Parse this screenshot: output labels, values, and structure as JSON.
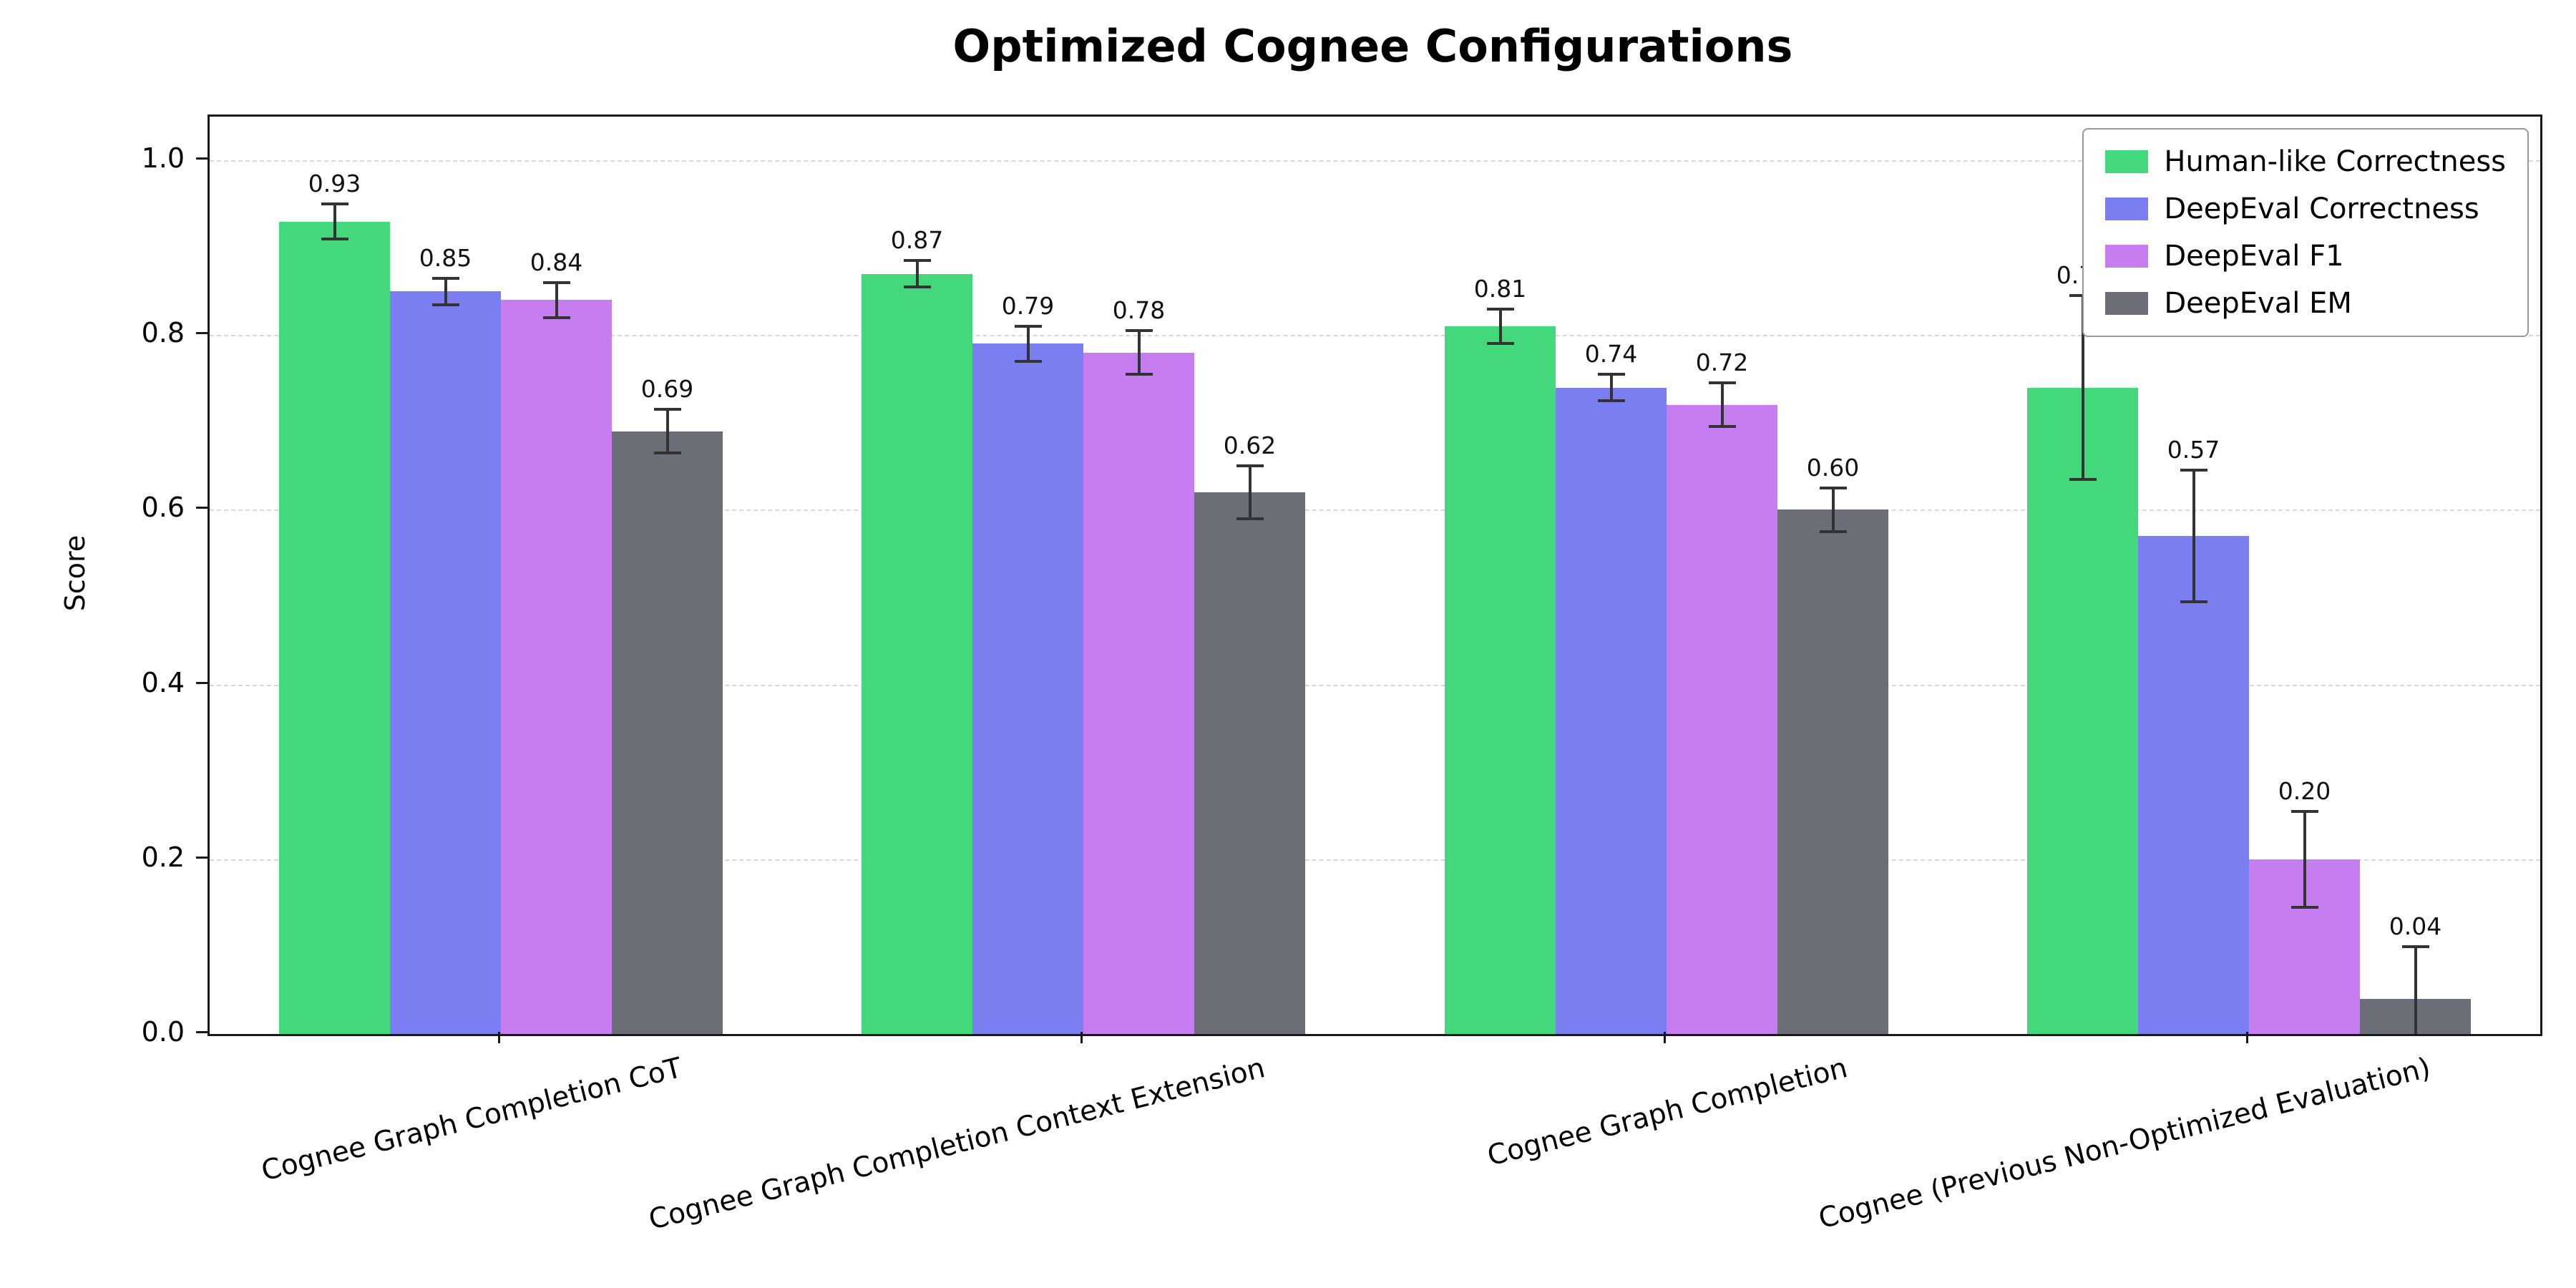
{
  "chart_data": {
    "type": "bar",
    "title": "Optimized Cognee Configurations",
    "xlabel": "",
    "ylabel": "Score",
    "ylim": [
      0,
      1.05
    ],
    "yticks": [
      0.0,
      0.2,
      0.4,
      0.6,
      0.8,
      1.0
    ],
    "grid": "horizontal dashed gridlines",
    "legend_position": "upper right",
    "error_bar_color": "#333333",
    "categories": [
      "Cognee Graph Completion CoT",
      "Cognee Graph Completion Context Extension",
      "Cognee Graph Completion",
      "Cognee (Previous Non-Optimized Evaluation)"
    ],
    "series": [
      {
        "name": "Human-like Correctness",
        "color": "#44d87d",
        "values": [
          0.93,
          0.87,
          0.81,
          0.74
        ],
        "errors": [
          0.02,
          0.015,
          0.02,
          0.105
        ]
      },
      {
        "name": "DeepEval Correctness",
        "color": "#7b7ef0",
        "values": [
          0.85,
          0.79,
          0.74,
          0.57
        ],
        "errors": [
          0.015,
          0.02,
          0.015,
          0.075
        ]
      },
      {
        "name": "DeepEval F1",
        "color": "#c67df0",
        "values": [
          0.84,
          0.78,
          0.72,
          0.2
        ],
        "errors": [
          0.02,
          0.025,
          0.025,
          0.055
        ]
      },
      {
        "name": "DeepEval EM",
        "color": "#6b6e76",
        "values": [
          0.69,
          0.62,
          0.6,
          0.04
        ],
        "errors": [
          0.025,
          0.03,
          0.025,
          0.06
        ]
      }
    ],
    "bar_value_labels_shown": true
  }
}
